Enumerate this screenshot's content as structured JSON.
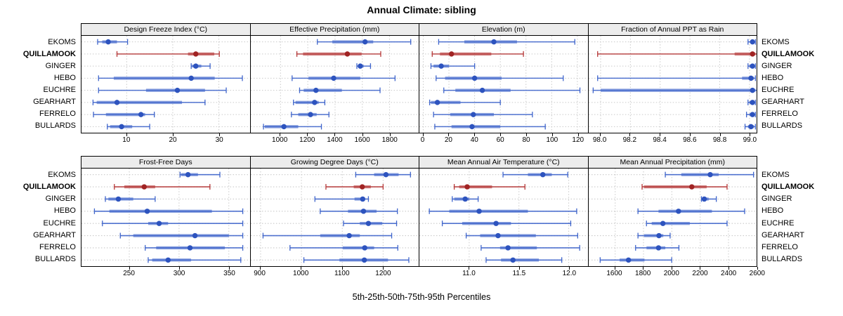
{
  "title": "Annual Climate: sibling",
  "xlabel": "5th-25th-50th-75th-95th Percentiles",
  "stations": [
    "EKOMS",
    "QUILLAMOOK",
    "GINGER",
    "HEBO",
    "EUCHRE",
    "GEARHART",
    "FERRELO",
    "BULLARDS"
  ],
  "highlight_station": "QUILLAMOOK",
  "colors": {
    "series_line": "#3E64CB",
    "series_dot": "#2D53BE",
    "highlight_line": "#B53737",
    "highlight_dot": "#A02323",
    "strip_bg": "#ececec",
    "grid": "#c9c9c9",
    "border": "#000000"
  },
  "chart_data": {
    "type": "dotplot-trellis",
    "description": "Percentile dot plots (5th, 25th, 50th, 75th, 95th) of annual climate variables for 8 stations; QUILLAMOOK highlighted in red.",
    "percentile_keys": [
      "5th",
      "25th",
      "50th",
      "75th",
      "95th"
    ],
    "layout": {
      "rows": 2,
      "cols": 4,
      "legend": "none",
      "grid": "dotted"
    },
    "panels": [
      {
        "title": "Design Freeze Index (°C)",
        "grid_row": 0,
        "grid_col": 0,
        "xlim": [
          0.2,
          36.7
        ],
        "ticks": [
          10,
          20,
          30
        ],
        "tick_labels": [
          "10",
          "20",
          "30"
        ],
        "percentiles": [
          [
            3.7,
            4.7,
            6.0,
            7.9,
            10.2
          ],
          [
            7.9,
            23.3,
            25.0,
            29.0,
            30.1
          ],
          [
            24.0,
            24.2,
            25.0,
            26.2,
            28.1
          ],
          [
            3.9,
            7.2,
            24.0,
            29.1,
            35.1
          ],
          [
            3.9,
            14.2,
            21.0,
            27.0,
            31.6
          ],
          [
            2.7,
            3.5,
            7.9,
            22.0,
            27.0
          ],
          [
            2.8,
            5.5,
            13.1,
            14.0,
            16.0
          ],
          [
            5.8,
            6.4,
            8.9,
            11.2,
            15.0
          ]
        ]
      },
      {
        "title": "Effective Precipitation (mm)",
        "grid_row": 0,
        "grid_col": 1,
        "xlim": [
          782,
          2016
        ],
        "ticks": [
          1000,
          1200,
          1400,
          1600,
          1800
        ],
        "tick_labels": [
          "1000",
          "1200",
          "1400",
          "1600",
          "1800"
        ],
        "percentiles": [
          [
            1270,
            1380,
            1620,
            1680,
            1955
          ],
          [
            1120,
            1165,
            1490,
            1595,
            1735
          ],
          [
            1560,
            1570,
            1585,
            1610,
            1660
          ],
          [
            1085,
            1205,
            1390,
            1585,
            1840
          ],
          [
            1140,
            1170,
            1260,
            1450,
            1730
          ],
          [
            1095,
            1110,
            1250,
            1280,
            1325
          ],
          [
            1080,
            1130,
            1220,
            1265,
            1355
          ],
          [
            875,
            885,
            1025,
            1130,
            1300
          ]
        ]
      },
      {
        "title": "Elevation (m)",
        "grid_row": 0,
        "grid_col": 2,
        "xlim": [
          -3,
          128
        ],
        "ticks": [
          0,
          20,
          40,
          60,
          80,
          100,
          120
        ],
        "tick_labels": [
          "0",
          "20",
          "40",
          "60",
          "80",
          "100",
          "120"
        ],
        "percentiles": [
          [
            12,
            32,
            55,
            73,
            118
          ],
          [
            7,
            13,
            22,
            53,
            78
          ],
          [
            6,
            8,
            14,
            20,
            40
          ],
          [
            10,
            17,
            40,
            61,
            109
          ],
          [
            16,
            25,
            46,
            68,
            122
          ],
          [
            5,
            6,
            11,
            29,
            60
          ],
          [
            8,
            21,
            39,
            55,
            85
          ],
          [
            9,
            22,
            38,
            60,
            95
          ]
        ]
      },
      {
        "title": "Fraction of Annual PPT as Rain",
        "grid_row": 0,
        "grid_col": 3,
        "xlim": [
          97.92,
          99.05
        ],
        "ticks": [
          98.0,
          98.2,
          98.4,
          98.6,
          98.8,
          99.0
        ],
        "tick_labels": [
          "98.0",
          "98.2",
          "98.4",
          "98.6",
          "98.8",
          "99.0"
        ],
        "percentiles": [
          [
            98.99,
            99.01,
            99.02,
            99.03,
            99.04
          ],
          [
            97.98,
            98.9,
            99.02,
            99.04,
            99.05
          ],
          [
            98.99,
            99.0,
            99.02,
            99.03,
            99.04
          ],
          [
            97.98,
            98.95,
            99.01,
            99.03,
            99.04
          ],
          [
            97.95,
            98.0,
            99.02,
            99.04,
            99.05
          ],
          [
            98.99,
            99.0,
            99.02,
            99.03,
            99.04
          ],
          [
            98.98,
            99.0,
            99.02,
            99.03,
            99.04
          ],
          [
            98.97,
            98.99,
            99.01,
            99.03,
            99.04
          ]
        ]
      },
      {
        "title": "Frost-Free Days",
        "grid_row": 1,
        "grid_col": 0,
        "xlim": [
          202,
          371
        ],
        "ticks": [
          250,
          300,
          350
        ],
        "tick_labels": [
          "250",
          "300",
          "350"
        ],
        "percentiles": [
          [
            301,
            302,
            309,
            319,
            341
          ],
          [
            235,
            245,
            265,
            276,
            331
          ],
          [
            226,
            229,
            239,
            254,
            276
          ],
          [
            215,
            230,
            268,
            333,
            364
          ],
          [
            223,
            269,
            280,
            289,
            364
          ],
          [
            241,
            254,
            316,
            350,
            364
          ],
          [
            266,
            277,
            311,
            346,
            364
          ],
          [
            269,
            273,
            289,
            312,
            362
          ]
        ]
      },
      {
        "title": "Growing Degree Days (°C)",
        "grid_row": 1,
        "grid_col": 1,
        "xlim": [
          876,
          1288
        ],
        "ticks": [
          900,
          1000,
          1100,
          1200
        ],
        "tick_labels": [
          "900",
          "1000",
          "1100",
          "1200"
        ],
        "percentiles": [
          [
            1133,
            1178,
            1207,
            1238,
            1267
          ],
          [
            1060,
            1128,
            1149,
            1170,
            1200
          ],
          [
            1033,
            1130,
            1150,
            1156,
            1164
          ],
          [
            1046,
            1114,
            1152,
            1184,
            1235
          ],
          [
            1103,
            1143,
            1164,
            1198,
            1233
          ],
          [
            906,
            1046,
            1117,
            1143,
            1221
          ],
          [
            972,
            1101,
            1155,
            1178,
            1236
          ],
          [
            1006,
            1093,
            1154,
            1212,
            1263
          ]
        ]
      },
      {
        "title": "Mean Annual Air Temperature (°C)",
        "grid_row": 1,
        "grid_col": 2,
        "xlim": [
          10.5,
          12.19
        ],
        "ticks": [
          11.0,
          11.5,
          12.0
        ],
        "tick_labels": [
          "11.0",
          "11.5",
          "12.0"
        ],
        "percentiles": [
          [
            11.34,
            11.59,
            11.74,
            11.83,
            11.99
          ],
          [
            10.85,
            10.9,
            10.98,
            11.23,
            11.56
          ],
          [
            10.83,
            10.85,
            10.96,
            11.0,
            11.09
          ],
          [
            10.6,
            10.8,
            11.1,
            11.59,
            12.08
          ],
          [
            10.73,
            10.93,
            11.27,
            11.42,
            12.02
          ],
          [
            10.97,
            11.11,
            11.29,
            11.67,
            12.09
          ],
          [
            11.12,
            11.31,
            11.39,
            11.68,
            12.11
          ],
          [
            11.17,
            11.32,
            11.44,
            11.7,
            11.93
          ]
        ]
      },
      {
        "title": "Mean Annual Precipitation (mm)",
        "grid_row": 1,
        "grid_col": 3,
        "xlim": [
          1413,
          2601
        ],
        "ticks": [
          1600,
          1800,
          2000,
          2200,
          2400,
          2600
        ],
        "tick_labels": [
          "1600",
          "1800",
          "2000",
          "2200",
          "2400",
          "2600"
        ],
        "percentiles": [
          [
            1954,
            2067,
            2271,
            2331,
            2577
          ],
          [
            1790,
            1804,
            2141,
            2246,
            2390
          ],
          [
            2209,
            2215,
            2229,
            2260,
            2314
          ],
          [
            1761,
            1906,
            2047,
            2283,
            2514
          ],
          [
            1821,
            1858,
            1937,
            2127,
            2390
          ],
          [
            1761,
            1804,
            1909,
            1940,
            1988
          ],
          [
            1744,
            1821,
            1906,
            1954,
            2050
          ],
          [
            1494,
            1631,
            1694,
            1807,
            1999
          ]
        ]
      }
    ]
  }
}
